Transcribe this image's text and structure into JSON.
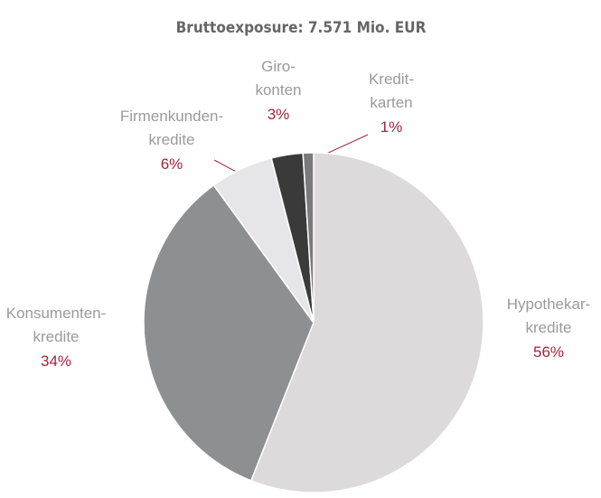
{
  "chart_data": {
    "type": "pie",
    "title": "Bruttoexposure: 7.571 Mio. EUR",
    "categories": [
      "Hypothekar-\nkredite",
      "Konsumenten-\nkredite",
      "Firmenkunden-\nkredite",
      "Giro-\nkonten",
      "Kredit-\nkarten"
    ],
    "values": [
      56,
      34,
      6,
      3,
      1
    ],
    "value_labels": [
      "56%",
      "34%",
      "6%",
      "3%",
      "1%"
    ],
    "colors": [
      "#dcdadb",
      "#8e8f91",
      "#e6e6e8",
      "#3a3a3a",
      "#7a7a7c"
    ]
  }
}
